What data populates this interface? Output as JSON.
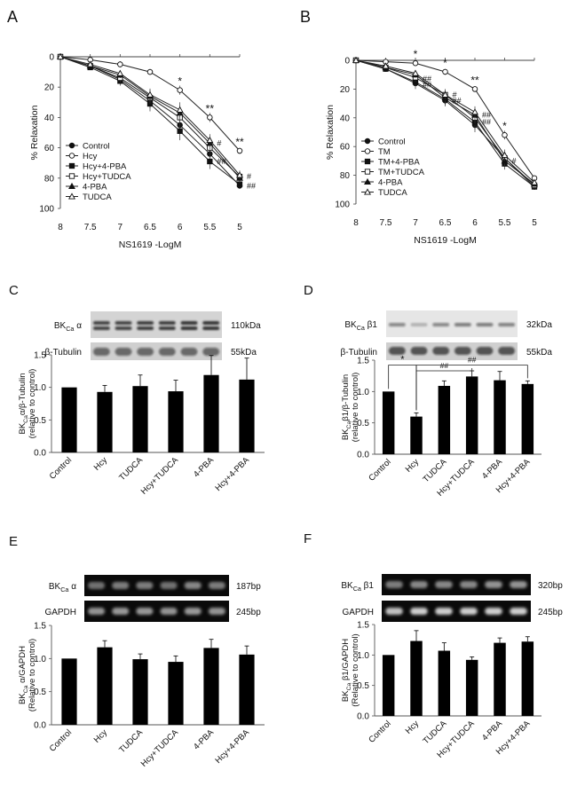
{
  "panels": {
    "A": {
      "letter": "A"
    },
    "B": {
      "letter": "B"
    },
    "C": {
      "letter": "C"
    },
    "D": {
      "letter": "D"
    },
    "E": {
      "letter": "E"
    },
    "F": {
      "letter": "F"
    }
  },
  "blots": {
    "C": {
      "rows": [
        {
          "label": "BK",
          "sub": "Ca",
          "suffix": " α",
          "size": "110kDa"
        },
        {
          "label": "β-Tubulin",
          "sub": "",
          "suffix": "",
          "size": "55kDa"
        }
      ]
    },
    "D": {
      "rows": [
        {
          "label": "BK",
          "sub": "Ca",
          "suffix": " β1",
          "size": "32kDa"
        },
        {
          "label": "β-Tubulin",
          "sub": "",
          "suffix": "",
          "size": "55kDa"
        }
      ]
    },
    "E": {
      "rows": [
        {
          "label": "BK",
          "sub": "Ca",
          "suffix": " α",
          "size": "187bp"
        },
        {
          "label": "GAPDH",
          "sub": "",
          "suffix": "",
          "size": "245bp"
        }
      ]
    },
    "F": {
      "rows": [
        {
          "label": "BK",
          "sub": "Ca",
          "suffix": " β1",
          "size": "320bp"
        },
        {
          "label": "GAPDH",
          "sub": "",
          "suffix": "",
          "size": "245bp"
        }
      ]
    }
  },
  "chart_data": [
    {
      "id": "A",
      "type": "line",
      "xlabel": "NS1619 -LogM",
      "ylabel": "% Relaxation",
      "x": [
        8,
        7.5,
        7,
        6.5,
        6,
        5.5,
        5
      ],
      "x_ticks": [
        "8",
        "7.5",
        "7",
        "6.5",
        "6",
        "5.5",
        "5"
      ],
      "y_ticks": [
        "0",
        "20",
        "40",
        "60",
        "80",
        "100"
      ],
      "ylim": [
        0,
        100
      ],
      "y_inverted": true,
      "legend_position": "bottom-left",
      "series": [
        {
          "name": "Control",
          "marker": "circle-filled",
          "values": [
            0,
            6,
            15,
            29,
            45,
            64,
            85
          ],
          "errors": [
            0,
            1,
            3,
            5,
            6,
            5,
            2
          ]
        },
        {
          "name": "Hcy",
          "marker": "circle-open",
          "values": [
            0,
            2,
            5,
            10,
            22,
            40,
            62
          ],
          "errors": [
            0,
            1,
            2,
            2,
            3,
            3,
            2
          ]
        },
        {
          "name": "Hcy+4-PBA",
          "marker": "square-filled",
          "values": [
            0,
            7,
            16,
            31,
            49,
            69,
            84
          ],
          "errors": [
            0,
            1,
            3,
            5,
            6,
            5,
            2
          ]
        },
        {
          "name": "Hcy+TUDCA",
          "marker": "square-open",
          "values": [
            0,
            6,
            14,
            27,
            40,
            60,
            79
          ],
          "errors": [
            0,
            1,
            3,
            4,
            5,
            4,
            3
          ]
        },
        {
          "name": "4-PBA",
          "marker": "triangle-filled",
          "values": [
            0,
            6,
            12,
            26,
            37,
            57,
            80
          ],
          "errors": [
            0,
            1,
            2,
            4,
            5,
            4,
            3
          ]
        },
        {
          "name": "TUDCA",
          "marker": "triangle-open",
          "values": [
            0,
            5,
            11,
            25,
            35,
            55,
            78
          ],
          "errors": [
            0,
            1,
            2,
            4,
            5,
            4,
            3
          ]
        }
      ],
      "annotations": [
        {
          "text": "*",
          "x": 6,
          "y": 22
        },
        {
          "text": "**",
          "x": 5.5,
          "y": 40
        },
        {
          "text": "**",
          "x": 5,
          "y": 62
        },
        {
          "text": "#",
          "x": 5.5,
          "y": 57
        },
        {
          "text": "##",
          "x": 5.5,
          "y": 69
        },
        {
          "text": "#",
          "x": 5,
          "y": 79
        },
        {
          "text": "##",
          "x": 5,
          "y": 85
        }
      ]
    },
    {
      "id": "B",
      "type": "line",
      "xlabel": "NS1619 -LogM",
      "ylabel": "% Relaxation",
      "x": [
        8,
        7.5,
        7,
        6.5,
        6,
        5.5,
        5
      ],
      "x_ticks": [
        "8",
        "7.5",
        "7",
        "6.5",
        "6",
        "5.5",
        "5"
      ],
      "y_ticks": [
        "0",
        "20",
        "40",
        "60",
        "80",
        "100"
      ],
      "ylim": [
        0,
        100
      ],
      "y_inverted": true,
      "legend_position": "bottom-left",
      "series": [
        {
          "name": "Control",
          "marker": "circle-filled",
          "values": [
            0,
            6,
            16,
            28,
            45,
            68,
            88
          ],
          "errors": [
            0,
            1,
            4,
            4,
            5,
            4,
            2
          ]
        },
        {
          "name": "TM",
          "marker": "circle-open",
          "values": [
            0,
            1,
            2,
            8,
            20,
            52,
            82
          ],
          "errors": [
            0,
            1,
            1,
            2,
            2,
            3,
            2
          ]
        },
        {
          "name": "TM+4-PBA",
          "marker": "square-filled",
          "values": [
            0,
            6,
            15,
            27,
            43,
            72,
            88
          ],
          "errors": [
            0,
            1,
            3,
            4,
            5,
            4,
            2
          ]
        },
        {
          "name": "TM+TUDCA",
          "marker": "square-open",
          "values": [
            0,
            5,
            12,
            24,
            40,
            68,
            87
          ],
          "errors": [
            0,
            1,
            3,
            4,
            4,
            4,
            2
          ]
        },
        {
          "name": "4-PBA",
          "marker": "triangle-filled",
          "values": [
            0,
            5,
            10,
            26,
            38,
            70,
            86
          ],
          "errors": [
            0,
            1,
            2,
            4,
            4,
            4,
            2
          ]
        },
        {
          "name": "TUDCA",
          "marker": "triangle-open",
          "values": [
            0,
            4,
            9,
            24,
            36,
            66,
            85
          ],
          "errors": [
            0,
            1,
            2,
            3,
            4,
            4,
            2
          ]
        }
      ],
      "annotations": [
        {
          "text": "*",
          "x": 7,
          "y": 2
        },
        {
          "text": "*",
          "x": 6.5,
          "y": 8
        },
        {
          "text": "**",
          "x": 6,
          "y": 20
        },
        {
          "text": "*",
          "x": 5.5,
          "y": 52
        },
        {
          "text": "##",
          "x": 7,
          "y": 13
        },
        {
          "text": "##",
          "x": 7,
          "y": 17
        },
        {
          "text": "#",
          "x": 6.5,
          "y": 24
        },
        {
          "text": "##",
          "x": 6.5,
          "y": 28
        },
        {
          "text": "##",
          "x": 6,
          "y": 38
        },
        {
          "text": "##",
          "x": 6,
          "y": 43
        },
        {
          "text": "#",
          "x": 5.5,
          "y": 70
        }
      ]
    },
    {
      "id": "C",
      "type": "bar",
      "categories": [
        "Control",
        "Hcy",
        "TUDCA",
        "Hcy+TUDCA",
        "4-PBA",
        "Hcy+4-PBA"
      ],
      "values": [
        1.0,
        0.93,
        1.02,
        0.94,
        1.19,
        1.12
      ],
      "errors": [
        0,
        0.1,
        0.17,
        0.17,
        0.3,
        0.33
      ],
      "ylabel": "BKCaα/β-Tubulin (relative to control)",
      "ylabel_lines": [
        {
          "pre": "BK",
          "sub": "Ca",
          "post": "α/β-Tubulin"
        },
        {
          "pre": "(relative to control)",
          "sub": "",
          "post": ""
        }
      ],
      "y_ticks": [
        "0.0",
        "0.5",
        "1.0",
        "1.5"
      ],
      "ylim": [
        0,
        1.5
      ]
    },
    {
      "id": "D",
      "type": "bar",
      "categories": [
        "Control",
        "Hcy",
        "TUDCA",
        "Hcy+TUDCA",
        "4-PBA",
        "Hcy+4-PBA"
      ],
      "values": [
        1.0,
        0.6,
        1.09,
        1.24,
        1.18,
        1.12
      ],
      "errors": [
        0,
        0.06,
        0.08,
        0.09,
        0.14,
        0.05
      ],
      "ylabel": "BKCaβ1/β-Tubulin (relative to control)",
      "ylabel_lines": [
        {
          "pre": "BK",
          "sub": "Ca",
          "post": "β1/β-Tubulin"
        },
        {
          "pre": "(relative to control)",
          "sub": "",
          "post": ""
        }
      ],
      "y_ticks": [
        "0.0",
        "0.5",
        "1.0",
        "1.5"
      ],
      "ylim": [
        0,
        1.5
      ],
      "brackets": [
        {
          "from": 0,
          "to": 1,
          "y": 1.42,
          "text": "*"
        },
        {
          "from": 1,
          "to": 5,
          "y": 1.42,
          "text": "##"
        },
        {
          "from": 1,
          "to": 3,
          "y": 1.33,
          "text": "##"
        }
      ]
    },
    {
      "id": "E",
      "type": "bar",
      "categories": [
        "Control",
        "Hcy",
        "TUDCA",
        "Hcy+TUDCA",
        "4-PBA",
        "Hcy+4-PBA"
      ],
      "values": [
        1.0,
        1.17,
        0.99,
        0.95,
        1.16,
        1.06
      ],
      "errors": [
        0,
        0.1,
        0.08,
        0.09,
        0.13,
        0.13
      ],
      "ylabel": "BKCa α/GAPDH (Relative to control)",
      "ylabel_lines": [
        {
          "pre": "BK",
          "sub": "Ca",
          "post": " α/GAPDH"
        },
        {
          "pre": "(Relative to control)",
          "sub": "",
          "post": ""
        }
      ],
      "y_ticks": [
        "0.0",
        "0.5",
        "1.0",
        "1.5"
      ],
      "ylim": [
        0,
        1.5
      ]
    },
    {
      "id": "F",
      "type": "bar",
      "categories": [
        "Control",
        "Hcy",
        "TUDCA",
        "Hcy+TUDCA",
        "4-PBA",
        "Hcy+4-PBA"
      ],
      "values": [
        1.0,
        1.23,
        1.07,
        0.92,
        1.2,
        1.22
      ],
      "errors": [
        0,
        0.17,
        0.13,
        0.05,
        0.08,
        0.08
      ],
      "ylabel": "BKCa β1/GAPDH (Relative to control)",
      "ylabel_lines": [
        {
          "pre": "BK",
          "sub": "Ca",
          "post": " β1/GAPDH"
        },
        {
          "pre": "(Relative to control)",
          "sub": "",
          "post": ""
        }
      ],
      "y_ticks": [
        "0.0",
        "0.5",
        "1.0",
        "1.5"
      ],
      "ylim": [
        0,
        1.5
      ]
    }
  ]
}
